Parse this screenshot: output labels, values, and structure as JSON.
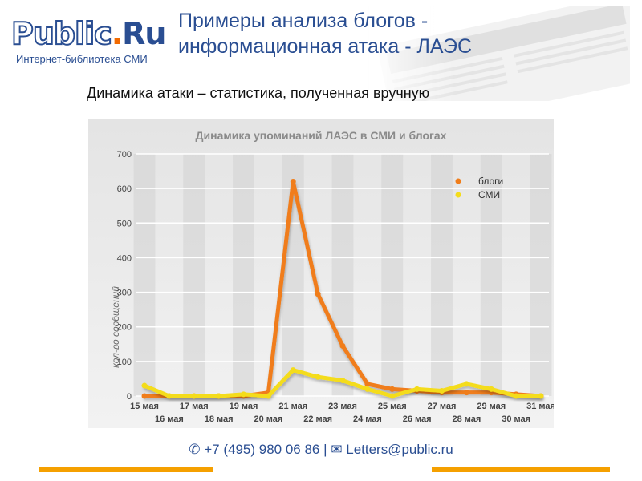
{
  "logo": {
    "main": "Public",
    "dot": ".",
    "ru": "Ru",
    "tagline": "Интернет-библиотека СМИ"
  },
  "page": {
    "title": "Примеры анализа блогов - информационная атака - ЛАЭС",
    "subtitle": "Динамика атаки – статистика, полученная вручную"
  },
  "footer": {
    "phone_icon": "phone-icon",
    "phone": "+7 (495) 980 06 86",
    "separator": "|",
    "mail_icon": "envelope-icon",
    "email": "Letters@public.ru"
  },
  "colors": {
    "brand_blue": "#2a4e92",
    "accent_orange": "#f26a00",
    "blogs": "#f07d1a",
    "media": "#f4dc1a"
  },
  "chart_data": {
    "type": "line",
    "title": "Динамика упоминаний ЛАЭС в СМИ и блогах",
    "xlabel": "",
    "ylabel": "кол-во сообщений",
    "ylim": [
      0,
      700
    ],
    "yticks": [
      0,
      100,
      200,
      300,
      400,
      500,
      600,
      700
    ],
    "grid": true,
    "legend_position": "top-right",
    "categories": [
      "15 мая",
      "16 мая",
      "17 мая",
      "18 мая",
      "19 мая",
      "20 мая",
      "21 мая",
      "22 мая",
      "23 мая",
      "24 мая",
      "25 мая",
      "26 мая",
      "27 мая",
      "28 мая",
      "29 мая",
      "30 мая",
      "31 мая"
    ],
    "series": [
      {
        "name": "блоги",
        "color": "#f07d1a",
        "values": [
          0,
          0,
          0,
          0,
          0,
          10,
          620,
          295,
          145,
          35,
          20,
          15,
          10,
          10,
          10,
          5,
          0
        ]
      },
      {
        "name": "СМИ",
        "color": "#f4dc1a",
        "values": [
          30,
          0,
          0,
          0,
          5,
          0,
          75,
          55,
          45,
          20,
          0,
          20,
          15,
          35,
          20,
          0,
          0
        ]
      }
    ]
  }
}
